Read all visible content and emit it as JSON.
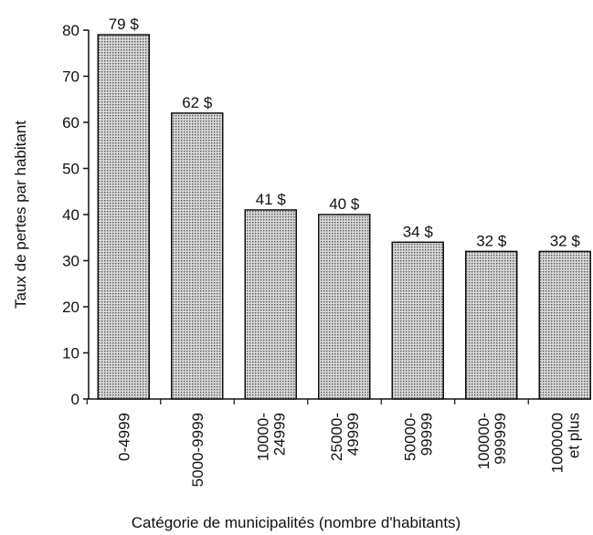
{
  "chart_data": {
    "type": "bar",
    "categories": [
      "0-4999",
      "5000-9999",
      "10000-\n24999",
      "25000-\n49999",
      "50000-\n99999",
      "100000-\n999999",
      "1000000\net plus"
    ],
    "values": [
      79,
      62,
      41,
      40,
      34,
      32,
      32
    ],
    "value_labels": [
      "79 $",
      "62 $",
      "41 $",
      "40 $",
      "34 $",
      "32 $",
      "32 $"
    ],
    "color": "#b8b8b8",
    "ylim": [
      0,
      80
    ],
    "yticks": [
      0,
      10,
      20,
      30,
      40,
      50,
      60,
      70,
      80
    ],
    "ylabel": "Taux de pertes par habitant",
    "xlabel": "Catégorie de municipalités (nombre d'habitants)"
  }
}
